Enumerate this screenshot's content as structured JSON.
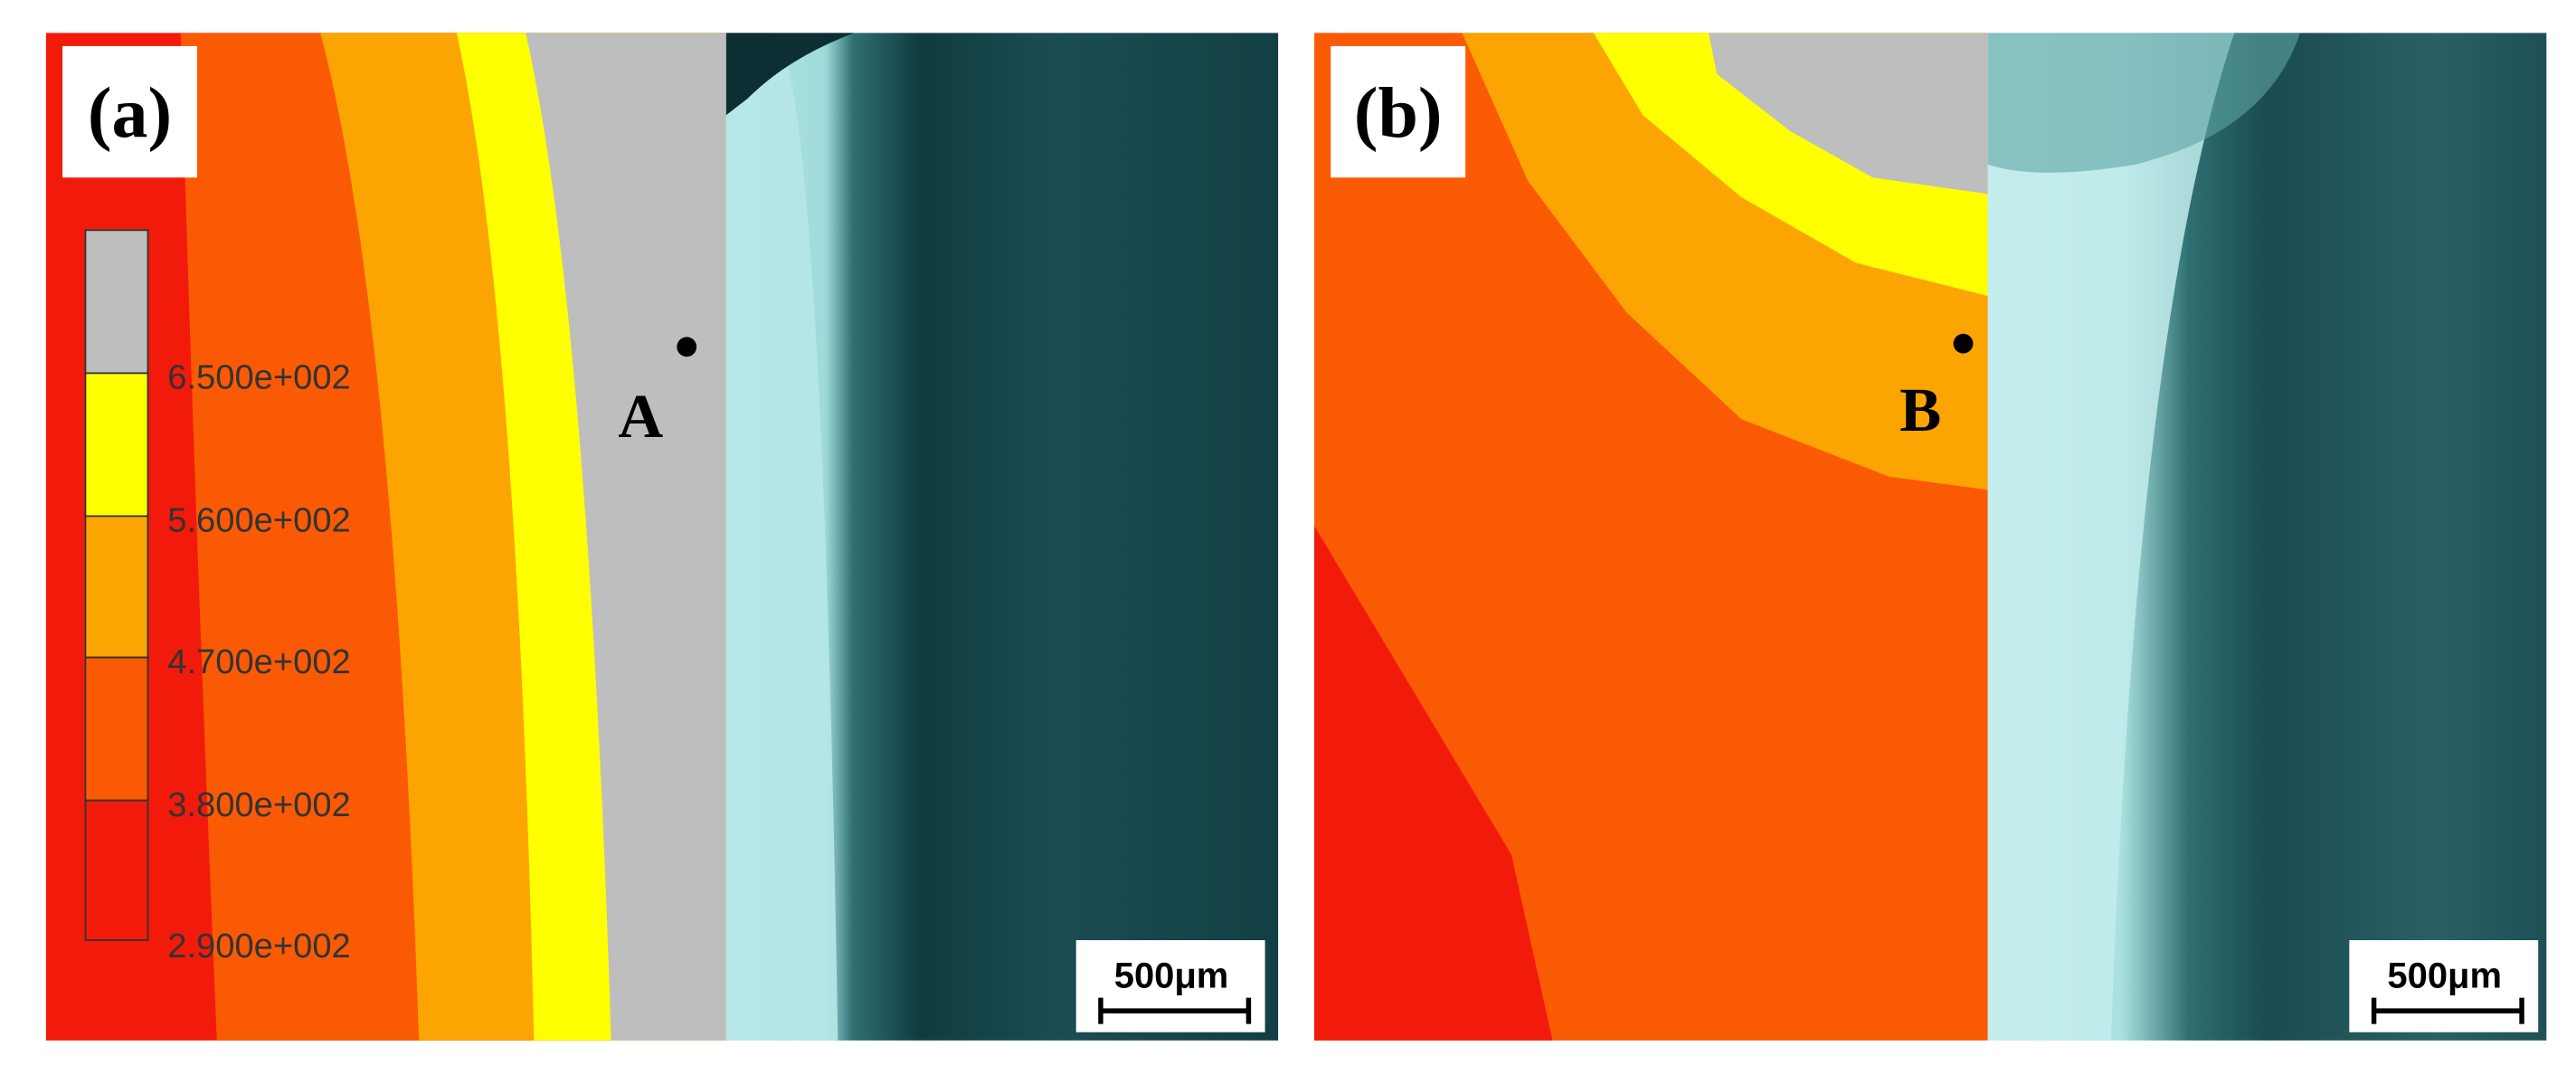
{
  "panels": [
    {
      "label": "(a)",
      "point_label": "A",
      "scale_bar": "500μm"
    },
    {
      "label": "(b)",
      "point_label": "B",
      "scale_bar": "500μm"
    }
  ],
  "legend": {
    "labels": [
      "6.500e+002",
      "5.600e+002",
      "4.700e+002",
      "3.800e+002",
      "2.900e+002"
    ]
  }
}
